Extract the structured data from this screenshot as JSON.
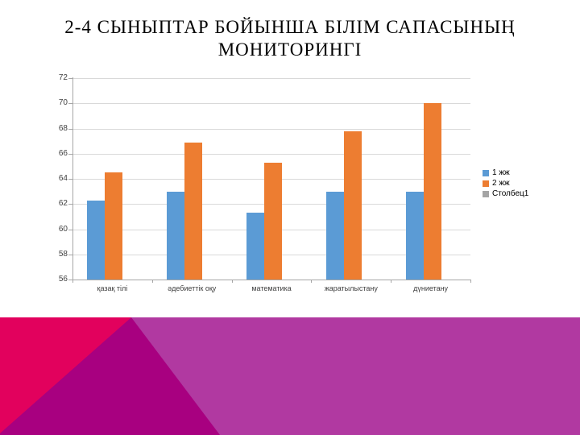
{
  "slide": {
    "title": "2-4 СЫНЫПТАР БОЙЫНША БІЛІМ САПАСЫНЫҢ МОНИТОРИНГІ",
    "background": "#FFFFFF"
  },
  "chart_data": {
    "type": "bar",
    "title": "",
    "categories": [
      "қазақ тілі",
      "әдебиеттік оқу",
      "математика",
      "жаратылыстану",
      "дүниетану"
    ],
    "series": [
      {
        "name": "1 жж",
        "color": "#5B9BD5",
        "values": [
          62.3,
          63,
          61.3,
          63,
          63
        ]
      },
      {
        "name": "2 жж",
        "color": "#ED7D31",
        "values": [
          64.5,
          66.9,
          65.3,
          67.8,
          70
        ]
      },
      {
        "name": "Столбец1",
        "color": "#A5A5A5",
        "values": [
          null,
          null,
          null,
          null,
          null
        ]
      }
    ],
    "xlabel": "",
    "ylabel": "",
    "ylim": [
      56,
      72
    ],
    "yticks": [
      56,
      58,
      60,
      62,
      64,
      66,
      68,
      70,
      72
    ],
    "grid": true,
    "legend_position": "right",
    "gridline_color": "#D9D9D9",
    "axis_color": "#A6A6A6",
    "tick_label_color": "#404040"
  },
  "decor": {
    "band_color": "#B139A1",
    "triangle_dark_color": "#A80080",
    "triangle_pink_color": "#E2015D"
  }
}
